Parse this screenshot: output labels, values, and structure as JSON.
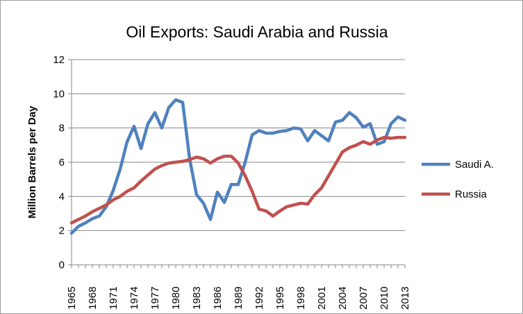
{
  "chart_data": {
    "type": "line",
    "title": "Oil Exports: Saudi Arabia and Russia",
    "xlabel": "",
    "ylabel": "Million Barrels per Day",
    "ylim": [
      0,
      12
    ],
    "yticks": [
      0,
      2,
      4,
      6,
      8,
      10,
      12
    ],
    "xticks": [
      "1965",
      "1968",
      "1971",
      "1974",
      "1977",
      "1980",
      "1983",
      "1986",
      "1989",
      "1992",
      "1995",
      "1998",
      "2001",
      "2004",
      "2007",
      "2010",
      "2013"
    ],
    "x": [
      1965,
      1966,
      1967,
      1968,
      1969,
      1970,
      1971,
      1972,
      1973,
      1974,
      1975,
      1976,
      1977,
      1978,
      1979,
      1980,
      1981,
      1982,
      1983,
      1984,
      1985,
      1986,
      1987,
      1988,
      1989,
      1990,
      1991,
      1992,
      1993,
      1994,
      1995,
      1996,
      1997,
      1998,
      1999,
      2000,
      2001,
      2002,
      2003,
      2004,
      2005,
      2006,
      2007,
      2008,
      2009,
      2010,
      2011,
      2012,
      2013
    ],
    "grid": true,
    "legend": "right",
    "series": [
      {
        "name": "Saudi A.",
        "color": "#4F81BD",
        "values": [
          1.85,
          2.25,
          2.45,
          2.7,
          2.85,
          3.4,
          4.35,
          5.6,
          7.2,
          8.1,
          6.8,
          8.25,
          8.9,
          8.0,
          9.2,
          9.65,
          9.5,
          6.2,
          4.1,
          3.6,
          2.65,
          4.25,
          3.65,
          4.7,
          4.7,
          6.0,
          7.6,
          7.85,
          7.7,
          7.7,
          7.8,
          7.85,
          8.0,
          7.95,
          7.25,
          7.85,
          7.55,
          7.25,
          8.35,
          8.45,
          8.9,
          8.6,
          8.05,
          8.25,
          7.05,
          7.2,
          8.25,
          8.65,
          8.45
        ]
      },
      {
        "name": "Russia",
        "color": "#C0504D",
        "values": [
          2.45,
          2.65,
          2.85,
          3.1,
          3.3,
          3.5,
          3.8,
          4.0,
          4.3,
          4.5,
          4.9,
          5.25,
          5.6,
          5.8,
          5.95,
          6.0,
          6.05,
          6.15,
          6.3,
          6.2,
          5.95,
          6.2,
          6.35,
          6.35,
          5.95,
          5.2,
          4.3,
          3.25,
          3.15,
          2.85,
          3.15,
          3.4,
          3.5,
          3.6,
          3.55,
          4.1,
          4.5,
          5.2,
          5.9,
          6.6,
          6.85,
          7.0,
          7.2,
          7.05,
          7.3,
          7.45,
          7.4,
          7.45,
          7.45
        ]
      }
    ]
  }
}
